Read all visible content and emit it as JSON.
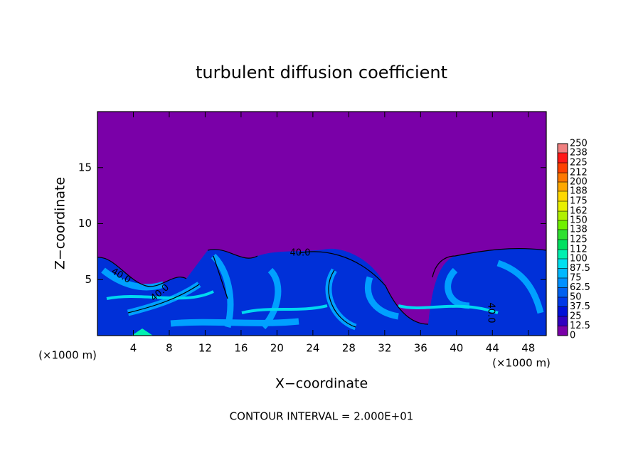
{
  "chart_data": {
    "type": "contour",
    "title": "turbulent diffusion coefficient",
    "x_label": "X−coordinate",
    "y_label": "Z−coordinate",
    "x_unit": "(×1000 m)",
    "y_unit": "(×1000 m)",
    "annotation": "CONTOUR INTERVAL = 2.000E+01",
    "contour_labels": [
      "40.0",
      "40.0",
      "40.0",
      "40.0"
    ],
    "xlim": [
      0,
      50
    ],
    "ylim": [
      0,
      20
    ],
    "xticks": [
      4,
      8,
      12,
      16,
      20,
      24,
      28,
      32,
      36,
      40,
      44,
      48
    ],
    "yticks": [
      5,
      10,
      15
    ],
    "zlim": [
      0,
      250
    ],
    "colorbar_ticks": [
      0,
      12.5,
      25,
      37.5,
      50,
      62.5,
      75,
      87.5,
      100,
      112,
      125,
      138,
      150,
      162,
      175,
      188,
      200,
      212,
      225,
      238,
      250
    ],
    "colors": [
      "#7a00a8",
      "#3000c0",
      "#0010d8",
      "#0038e8",
      "#0060f0",
      "#0090ff",
      "#00b8ff",
      "#00e0f0",
      "#00f0b0",
      "#00e060",
      "#30e030",
      "#70f000",
      "#b0f000",
      "#e8f000",
      "#ffd800",
      "#ffa800",
      "#ff7800",
      "#ff4000",
      "#ff1818",
      "#f08080"
    ]
  }
}
